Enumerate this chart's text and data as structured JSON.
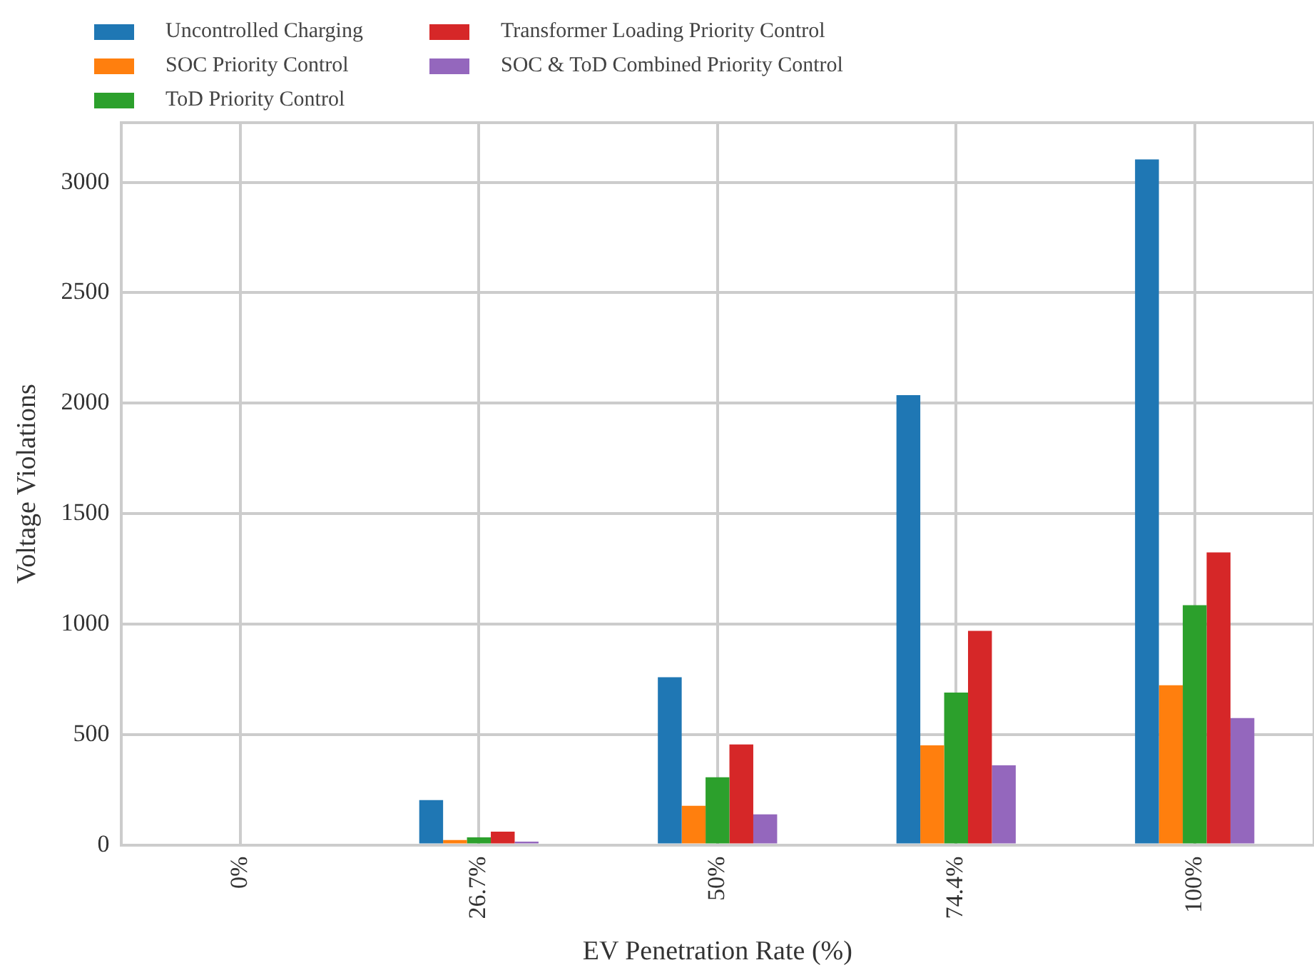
{
  "chart_data": {
    "type": "bar",
    "xlabel": "EV Penetration Rate (%)",
    "ylabel": "Voltage Violations",
    "categories": [
      "0%",
      "26.7%",
      "50%",
      "74.4%",
      "100%"
    ],
    "series": [
      {
        "name": "Uncontrolled Charging",
        "color": "#1f77b4",
        "values": [
          0,
          203,
          759,
          2036,
          3104
        ]
      },
      {
        "name": "SOC Priority Control",
        "color": "#ff7f0e",
        "values": [
          0,
          22,
          177,
          451,
          723
        ]
      },
      {
        "name": "ToD Priority Control",
        "color": "#2ca02c",
        "values": [
          0,
          34,
          306,
          690,
          1085
        ]
      },
      {
        "name": "Transformer Loading Priority Control",
        "color": "#d62728",
        "values": [
          0,
          60,
          455,
          969,
          1324
        ]
      },
      {
        "name": "SOC & ToD Combined Priority Control",
        "color": "#9467bd",
        "values": [
          0,
          15,
          138,
          360,
          574
        ]
      }
    ],
    "ylim": [
      0,
      3270
    ],
    "yticks": [
      0,
      500,
      1000,
      1500,
      2000,
      2500,
      3000
    ],
    "grid": true,
    "legend": "top left"
  }
}
